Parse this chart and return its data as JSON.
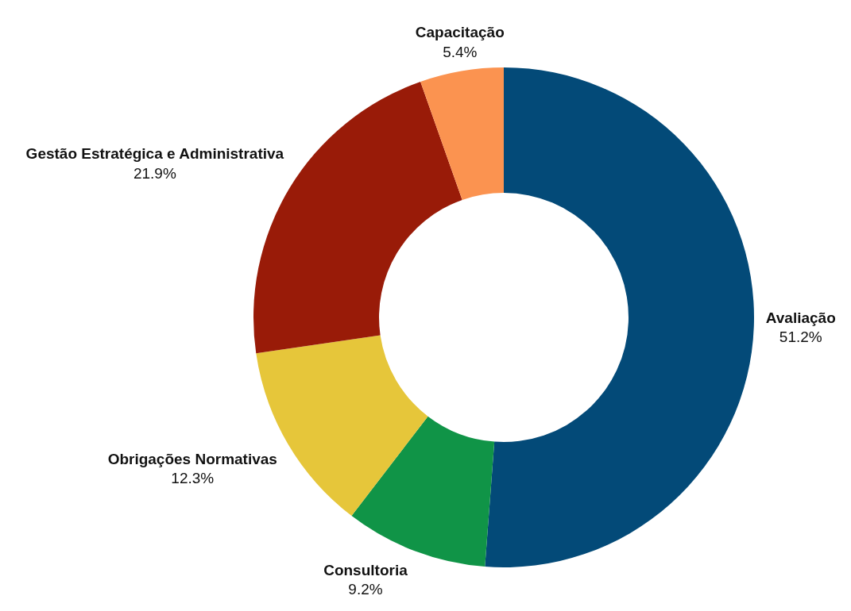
{
  "chart_data": {
    "type": "donut",
    "categories": [
      "Avaliação",
      "Consultoria",
      "Obrigações Normativas",
      "Gestão Estratégica e Administrativa",
      "Capacitação"
    ],
    "values": [
      51.2,
      9.2,
      12.3,
      21.9,
      5.4
    ],
    "colors": [
      "#034a78",
      "#109447",
      "#e6c63a",
      "#991b08",
      "#fb9350"
    ],
    "value_labels": [
      "51.2%",
      "9.2%",
      "12.3%",
      "21.9%",
      "5.4%"
    ]
  }
}
